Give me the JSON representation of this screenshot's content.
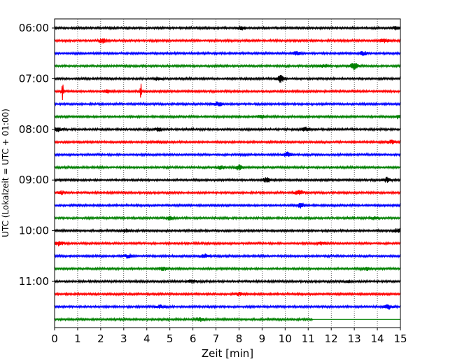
{
  "chart_data": {
    "type": "line",
    "title": "",
    "xlabel": "Zeit  [min]",
    "ylabel": "UTC (Lokalzeit = UTC + 01:00)",
    "xlim": [
      0,
      15
    ],
    "x_ticks": [
      "0",
      "1",
      "2",
      "3",
      "4",
      "5",
      "6",
      "7",
      "8",
      "9",
      "10",
      "11",
      "12",
      "13",
      "14",
      "15"
    ],
    "y_ticks": [
      {
        "label": "06:00",
        "row": 0
      },
      {
        "label": "07:00",
        "row": 4
      },
      {
        "label": "08:00",
        "row": 8
      },
      {
        "label": "09:00",
        "row": 12
      },
      {
        "label": "10:00",
        "row": 16
      },
      {
        "label": "11:00",
        "row": 20
      }
    ],
    "grid": "vertical dotted lines at each minute",
    "trace_colors": [
      "#000000",
      "#ff0000",
      "#0000ff",
      "#008000"
    ],
    "traces": [
      {
        "start": "06:00",
        "color": "#000000",
        "events": [
          {
            "t": 8.1,
            "amp": 2.5
          },
          {
            "t": 14.8,
            "amp": 2
          }
        ]
      },
      {
        "start": "06:15",
        "color": "#ff0000",
        "events": [
          {
            "t": 2.1,
            "amp": 3
          },
          {
            "t": 14.3,
            "amp": 2.5
          }
        ]
      },
      {
        "start": "06:30",
        "color": "#0000ff",
        "events": [
          {
            "t": 10.5,
            "amp": 2.5
          },
          {
            "t": 13.4,
            "amp": 2.5
          }
        ]
      },
      {
        "start": "06:45",
        "color": "#008000",
        "events": [
          {
            "t": 11.7,
            "amp": 2.5
          },
          {
            "t": 13.0,
            "amp": 5
          }
        ]
      },
      {
        "start": "07:00",
        "color": "#000000",
        "events": [
          {
            "t": 4.5,
            "amp": 2
          },
          {
            "t": 9.8,
            "amp": 5
          }
        ]
      },
      {
        "start": "07:15",
        "color": "#ff0000",
        "events": [
          {
            "t": 0.35,
            "amp": 14
          },
          {
            "t": 2.3,
            "amp": 2
          },
          {
            "t": 3.75,
            "amp": 12
          }
        ]
      },
      {
        "start": "07:30",
        "color": "#0000ff",
        "events": [
          {
            "t": 7.1,
            "amp": 3
          }
        ]
      },
      {
        "start": "07:45",
        "color": "#008000",
        "events": [
          {
            "t": 9.0,
            "amp": 2.5
          },
          {
            "t": 14.9,
            "amp": 2
          }
        ]
      },
      {
        "start": "08:00",
        "color": "#000000",
        "events": [
          {
            "t": 0.1,
            "amp": 3
          },
          {
            "t": 4.5,
            "amp": 2.5
          },
          {
            "t": 10.9,
            "amp": 2.5
          }
        ]
      },
      {
        "start": "08:15",
        "color": "#ff0000",
        "events": [
          {
            "t": 4.5,
            "amp": 2
          },
          {
            "t": 14.6,
            "amp": 2
          }
        ]
      },
      {
        "start": "08:30",
        "color": "#0000ff",
        "events": [
          {
            "t": 10.1,
            "amp": 3
          }
        ]
      },
      {
        "start": "08:45",
        "color": "#008000",
        "events": [
          {
            "t": 7.2,
            "amp": 2.5
          },
          {
            "t": 8.0,
            "amp": 3
          }
        ]
      },
      {
        "start": "09:00",
        "color": "#000000",
        "events": [
          {
            "t": 9.2,
            "amp": 3
          },
          {
            "t": 14.4,
            "amp": 3
          }
        ]
      },
      {
        "start": "09:15",
        "color": "#ff0000",
        "events": [
          {
            "t": 0.3,
            "amp": 2
          },
          {
            "t": 10.6,
            "amp": 3
          }
        ]
      },
      {
        "start": "09:30",
        "color": "#0000ff",
        "events": [
          {
            "t": 10.7,
            "amp": 3
          }
        ]
      },
      {
        "start": "09:45",
        "color": "#008000",
        "events": [
          {
            "t": 5.0,
            "amp": 2.5
          },
          {
            "t": 13.9,
            "amp": 2
          }
        ]
      },
      {
        "start": "10:00",
        "color": "#000000",
        "events": [
          {
            "t": 3.1,
            "amp": 2
          },
          {
            "t": 14.9,
            "amp": 3
          }
        ]
      },
      {
        "start": "10:15",
        "color": "#ff0000",
        "events": [
          {
            "t": 0.2,
            "amp": 3
          },
          {
            "t": 11.6,
            "amp": 2
          }
        ]
      },
      {
        "start": "10:30",
        "color": "#0000ff",
        "events": [
          {
            "t": 3.2,
            "amp": 2.5
          },
          {
            "t": 6.5,
            "amp": 3
          }
        ]
      },
      {
        "start": "10:45",
        "color": "#008000",
        "events": [
          {
            "t": 4.7,
            "amp": 2
          },
          {
            "t": 13.5,
            "amp": 2
          }
        ]
      },
      {
        "start": "11:00",
        "color": "#000000",
        "events": [
          {
            "t": 6.0,
            "amp": 2
          },
          {
            "t": 12.7,
            "amp": 1.8
          }
        ]
      },
      {
        "start": "11:15",
        "color": "#ff0000",
        "events": [
          {
            "t": 8.0,
            "amp": 2
          }
        ]
      },
      {
        "start": "11:30",
        "color": "#0000ff",
        "events": [
          {
            "t": 4.6,
            "amp": 2
          },
          {
            "t": 14.5,
            "amp": 3
          }
        ]
      },
      {
        "start": "11:45",
        "color": "#008000",
        "events": [
          {
            "t": 6.3,
            "amp": 2.5
          }
        ],
        "data_end": 11.2
      }
    ]
  }
}
